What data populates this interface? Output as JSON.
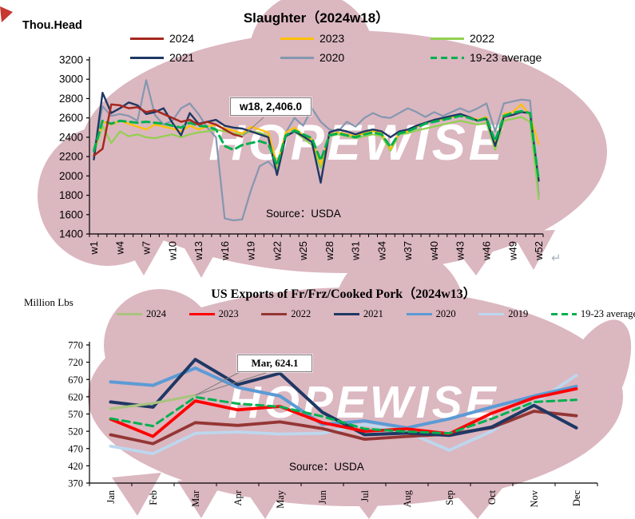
{
  "watermark": {
    "text": "HOPEWISE",
    "pink": "#DBB7C0",
    "corner_red": "#C5392F"
  },
  "paragraph_mark": "↵",
  "chart_data": [
    {
      "type": "line",
      "title": "Slaughter（2024w18）",
      "ylabel": "Thou.Head",
      "source": "Source：USDA",
      "ylim": [
        1400,
        3200
      ],
      "ytick_step": 200,
      "label_every": 3,
      "grid": false,
      "legend_position": "top",
      "annotation": {
        "label": "w18, 2,406.0",
        "series": "2024",
        "x": "w18",
        "value": 2406.0
      },
      "x": [
        "w1",
        "w2",
        "w3",
        "w4",
        "w5",
        "w6",
        "w7",
        "w8",
        "w9",
        "w10",
        "w11",
        "w12",
        "w13",
        "w14",
        "w15",
        "w16",
        "w17",
        "w18",
        "w19",
        "w20",
        "w21",
        "w22",
        "w23",
        "w24",
        "w25",
        "w26",
        "w27",
        "w28",
        "w29",
        "w30",
        "w31",
        "w32",
        "w33",
        "w34",
        "w35",
        "w36",
        "w37",
        "w38",
        "w39",
        "w40",
        "w41",
        "w42",
        "w43",
        "w44",
        "w45",
        "w46",
        "w47",
        "w48",
        "w49",
        "w50",
        "w51",
        "w52"
      ],
      "series": [
        {
          "name": "2024",
          "color": "#A6281E",
          "dash": false,
          "width": 2.5,
          "z": 6,
          "values": [
            2210,
            2280,
            2740,
            2730,
            2700,
            2710,
            2660,
            2680,
            2640,
            2600,
            2560,
            2580,
            2530,
            2560,
            2530,
            2480,
            2430,
            2406
          ]
        },
        {
          "name": "2023",
          "color": "#FFC000",
          "dash": false,
          "width": 2.2,
          "z": 3,
          "values": [
            2240,
            2560,
            2530,
            2570,
            2540,
            2510,
            2480,
            2530,
            2510,
            2490,
            2460,
            2520,
            2480,
            2510,
            2530,
            2490,
            2470,
            2440,
            2510,
            2480,
            2450,
            2120,
            2450,
            2500,
            2420,
            2380,
            2120,
            2430,
            2450,
            2430,
            2410,
            2440,
            2460,
            2440,
            2280,
            2440,
            2460,
            2510,
            2550,
            2570,
            2590,
            2610,
            2630,
            2610,
            2580,
            2610,
            2330,
            2640,
            2660,
            2740,
            2620,
            2330
          ]
        },
        {
          "name": "2022",
          "color": "#92D050",
          "dash": false,
          "width": 2.2,
          "z": 2,
          "values": [
            2230,
            2520,
            2340,
            2460,
            2410,
            2430,
            2400,
            2390,
            2410,
            2430,
            2400,
            2430,
            2450,
            2460,
            2480,
            2460,
            2440,
            2430,
            2460,
            2450,
            2410,
            2060,
            2420,
            2460,
            2390,
            2320,
            2080,
            2410,
            2430,
            2410,
            2390,
            2410,
            2430,
            2410,
            2260,
            2430,
            2440,
            2470,
            2490,
            2510,
            2530,
            2550,
            2570,
            2550,
            2530,
            2550,
            2270,
            2570,
            2590,
            2610,
            2560,
            1760
          ]
        },
        {
          "name": "2021",
          "color": "#1F3864",
          "dash": false,
          "width": 2.4,
          "z": 4,
          "values": [
            2170,
            2860,
            2650,
            2700,
            2760,
            2730,
            2640,
            2660,
            2700,
            2550,
            2420,
            2650,
            2540,
            2560,
            2580,
            2520,
            2500,
            2490,
            2460,
            2430,
            2400,
            2010,
            2410,
            2460,
            2410,
            2350,
            1930,
            2450,
            2480,
            2460,
            2430,
            2460,
            2480,
            2460,
            2400,
            2460,
            2480,
            2520,
            2550,
            2580,
            2600,
            2620,
            2640,
            2610,
            2570,
            2590,
            2310,
            2610,
            2630,
            2660,
            2650,
            1950
          ]
        },
        {
          "name": "2020",
          "color": "#8497B0",
          "dash": false,
          "width": 2.2,
          "z": 1,
          "values": [
            2250,
            2720,
            2620,
            2640,
            2620,
            2570,
            2990,
            2630,
            2530,
            2570,
            2700,
            2750,
            2640,
            2500,
            2400,
            1560,
            1540,
            1550,
            1850,
            2100,
            2150,
            2050,
            2450,
            2600,
            2520,
            2700,
            2560,
            2480,
            2460,
            2560,
            2510,
            2600,
            2650,
            2610,
            2600,
            2650,
            2700,
            2660,
            2610,
            2660,
            2620,
            2660,
            2700,
            2660,
            2700,
            2750,
            2460,
            2750,
            2770,
            2790,
            2780,
            1800
          ]
        },
        {
          "name": "19-23 average",
          "color": "#00B050",
          "dash": true,
          "width": 3,
          "z": 5,
          "values": [
            2260,
            2570,
            2540,
            2570,
            2560,
            2550,
            2560,
            2550,
            2540,
            2520,
            2500,
            2550,
            2520,
            2510,
            2480,
            2310,
            2270,
            2320,
            2340,
            2360,
            2330,
            2110,
            2420,
            2470,
            2430,
            2390,
            2160,
            2420,
            2440,
            2420,
            2400,
            2430,
            2450,
            2430,
            2300,
            2440,
            2460,
            2500,
            2540,
            2560,
            2580,
            2600,
            2620,
            2600,
            2570,
            2600,
            2360,
            2620,
            2650,
            2670,
            2650,
            1950
          ]
        }
      ]
    },
    {
      "type": "line",
      "title": "US Exports of Fr/Frz/Cooked Pork（2024w13）",
      "ylabel": "Million Lbs",
      "source": "Source：USDA",
      "ylim": [
        370,
        770
      ],
      "ytick_step": 50,
      "label_every": 1,
      "grid": false,
      "legend_position": "top",
      "annotation": {
        "label": "Mar, 624.1",
        "series": "2024",
        "x": "Mar",
        "value": 624.1
      },
      "x": [
        "Jan",
        "Feb",
        "Mar",
        "Apr",
        "May",
        "Jun",
        "Jul",
        "Aug",
        "Sep",
        "Oct",
        "Nov",
        "Dec"
      ],
      "series": [
        {
          "name": "2024",
          "color": "#A9C47E",
          "dash": false,
          "width": 3.2,
          "z": 5,
          "values": [
            585,
            601,
            624.1
          ]
        },
        {
          "name": "2023",
          "color": "#FF0000",
          "dash": false,
          "width": 3.8,
          "z": 6,
          "values": [
            555,
            505,
            608,
            582,
            592,
            545,
            520,
            527,
            513,
            572,
            617,
            643
          ]
        },
        {
          "name": "2022",
          "color": "#943634",
          "dash": false,
          "width": 3.8,
          "z": 2,
          "values": [
            510,
            484,
            545,
            537,
            547,
            528,
            497,
            505,
            512,
            530,
            578,
            565
          ]
        },
        {
          "name": "2021",
          "color": "#1F3864",
          "dash": false,
          "width": 4,
          "z": 4,
          "values": [
            605,
            590,
            728,
            655,
            688,
            575,
            510,
            515,
            508,
            532,
            595,
            530
          ]
        },
        {
          "name": "2020",
          "color": "#5B9BD5",
          "dash": false,
          "width": 4,
          "z": 3,
          "values": [
            663,
            653,
            703,
            647,
            622,
            540,
            550,
            530,
            556,
            590,
            622,
            650
          ]
        },
        {
          "name": "2019",
          "color": "#BDD7EE",
          "dash": false,
          "width": 3.8,
          "z": 1,
          "values": [
            477,
            455,
            514,
            518,
            512,
            514,
            540,
            518,
            465,
            520,
            600,
            682
          ]
        },
        {
          "name": "19-23 average",
          "color": "#00B050",
          "dash": true,
          "width": 3,
          "z": 7,
          "values": [
            557,
            535,
            619,
            600,
            591,
            563,
            527,
            519,
            514,
            556,
            605,
            611
          ]
        }
      ]
    }
  ]
}
